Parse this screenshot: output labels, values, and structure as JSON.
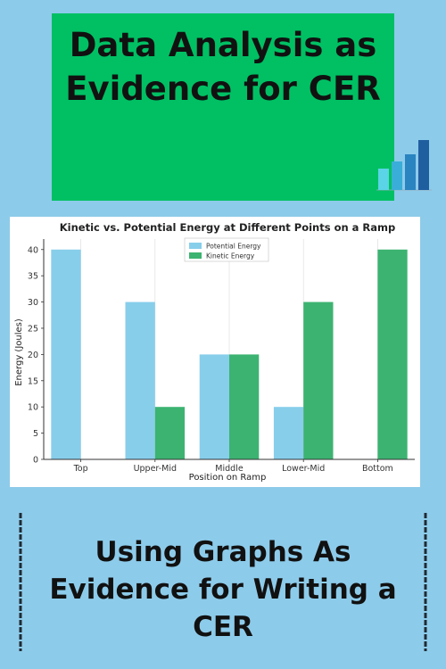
{
  "page": {
    "title": "Data Analysis as Evidence for CER",
    "subtitle": "Using Graphs As Evidence for Writing a CER"
  },
  "colors": {
    "background": "#8dcbea",
    "title_badge": "#00c063",
    "potential": "#87ceeb",
    "kinetic": "#3cb371"
  },
  "chart_data": {
    "type": "bar",
    "title": "Kinetic vs. Potential Energy at Different Points on a Ramp",
    "xlabel": "Position on Ramp",
    "ylabel": "Energy (Joules)",
    "categories": [
      "Top",
      "Upper-Mid",
      "Middle",
      "Lower-Mid",
      "Bottom"
    ],
    "series": [
      {
        "name": "Potential Energy",
        "values": [
          40,
          30,
          20,
          10,
          0
        ]
      },
      {
        "name": "Kinetic Energy",
        "values": [
          0,
          10,
          20,
          30,
          40
        ]
      }
    ],
    "ylim": [
      0,
      42
    ],
    "yticks": [
      0,
      5,
      10,
      15,
      20,
      25,
      30,
      35,
      40
    ],
    "grid": "vertical",
    "legend": "top-center"
  },
  "mini_chart": {
    "type": "bar",
    "values": [
      3,
      4,
      5,
      7
    ],
    "colors": [
      "#5ad4e6",
      "#3aaed8",
      "#2a84c0",
      "#1f5fa0"
    ]
  }
}
